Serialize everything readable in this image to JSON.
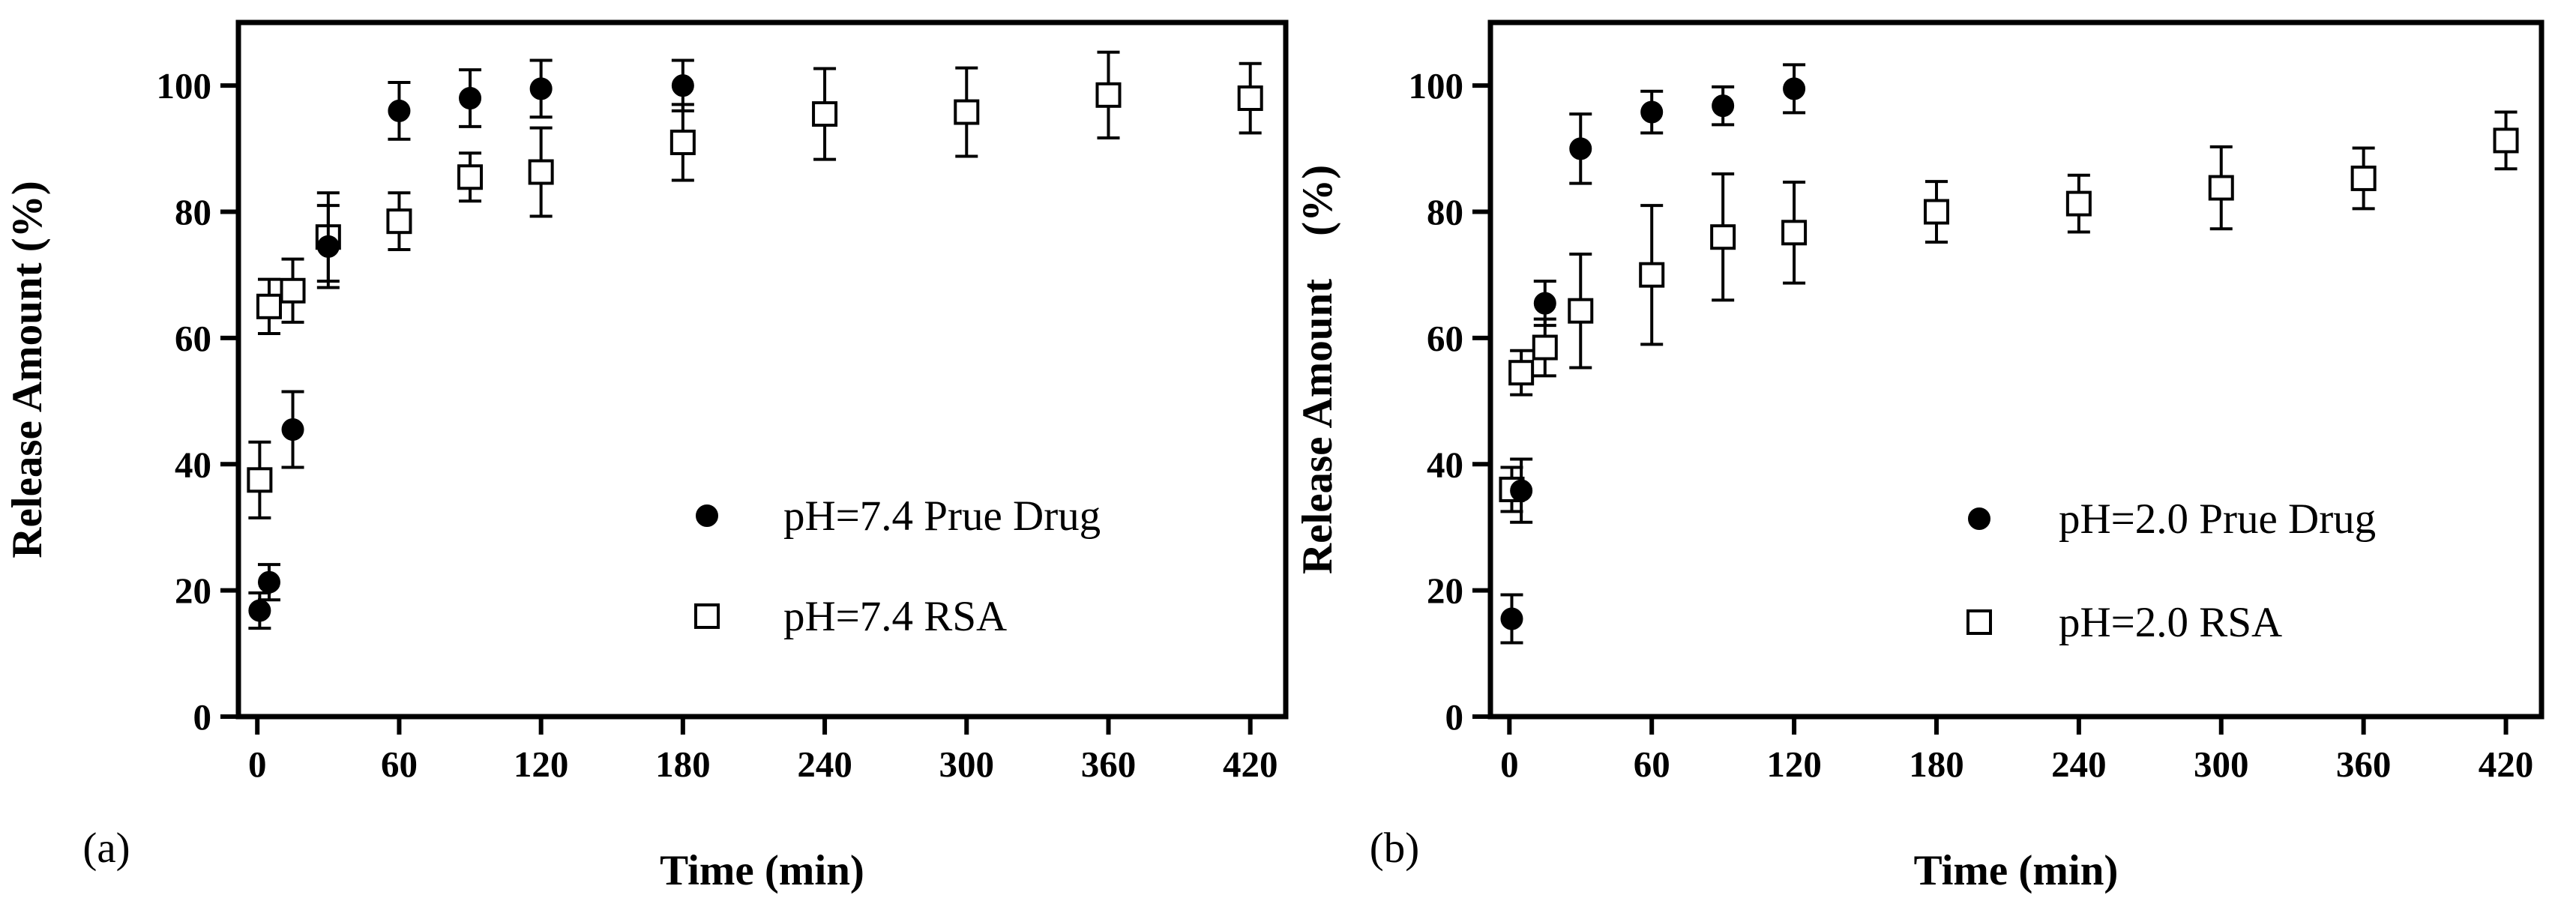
{
  "chart_data": [
    {
      "type": "scatter",
      "panel_label": "(a)",
      "xlabel": "Time (min)",
      "ylabel": "Release Amount (%)",
      "xlim": [
        -8,
        435
      ],
      "ylim": [
        0,
        110
      ],
      "xticks": [
        0,
        60,
        120,
        180,
        240,
        300,
        360,
        420
      ],
      "yticks": [
        0,
        20,
        40,
        60,
        80,
        100
      ],
      "legend_position": "right-middle",
      "series": [
        {
          "name": "pH=7.4 Prue Drug",
          "marker": "filled-circle",
          "x": [
            1,
            5,
            15,
            30,
            60,
            90,
            120,
            180
          ],
          "y": [
            16.8,
            21.3,
            45.5,
            74.5,
            96,
            98,
            99.5,
            100
          ],
          "err": [
            2.8,
            2.8,
            6.0,
            6.5,
            4.5,
            4.5,
            4.5,
            4.0
          ]
        },
        {
          "name": "pH=7.4 RSA",
          "marker": "open-square",
          "x": [
            1,
            5,
            15,
            30,
            60,
            90,
            120,
            180,
            240,
            300,
            360,
            420
          ],
          "y": [
            37.5,
            65,
            67.5,
            76,
            78.5,
            85.5,
            86.3,
            91,
            95.5,
            95.8,
            98.5,
            98
          ],
          "err": [
            6.0,
            4.3,
            5.0,
            7.0,
            4.5,
            3.8,
            7.0,
            6.0,
            7.2,
            7.0,
            6.8,
            5.5
          ]
        }
      ]
    },
    {
      "type": "scatter",
      "panel_label": "(b)",
      "xlabel": "Time (min)",
      "ylabel": "Release Amount　(%)",
      "xlim": [
        -8,
        435
      ],
      "ylim": [
        0,
        110
      ],
      "xticks": [
        0,
        60,
        120,
        180,
        240,
        300,
        360,
        420
      ],
      "yticks": [
        0,
        20,
        40,
        60,
        80,
        100
      ],
      "legend_position": "right-middle",
      "series": [
        {
          "name": "pH=2.0 Prue Drug",
          "marker": "filled-circle",
          "x": [
            1,
            5,
            15,
            30,
            60,
            90,
            120
          ],
          "y": [
            15.5,
            35.8,
            65.5,
            90,
            95.8,
            96.8,
            99.5
          ],
          "err": [
            3.8,
            5.0,
            3.5,
            5.5,
            3.3,
            3.0,
            3.8
          ]
        },
        {
          "name": "pH=2.0 RSA",
          "marker": "open-square",
          "x": [
            1,
            5,
            15,
            30,
            60,
            90,
            120,
            180,
            240,
            300,
            360,
            420
          ],
          "y": [
            36,
            54.5,
            58.5,
            64.3,
            70,
            76,
            76.7,
            80,
            81.3,
            83.8,
            85.3,
            91.3
          ],
          "err": [
            3.5,
            3.5,
            4.5,
            9.0,
            11.0,
            10.0,
            8.0,
            4.8,
            4.5,
            6.5,
            4.8,
            4.5
          ]
        }
      ]
    }
  ]
}
